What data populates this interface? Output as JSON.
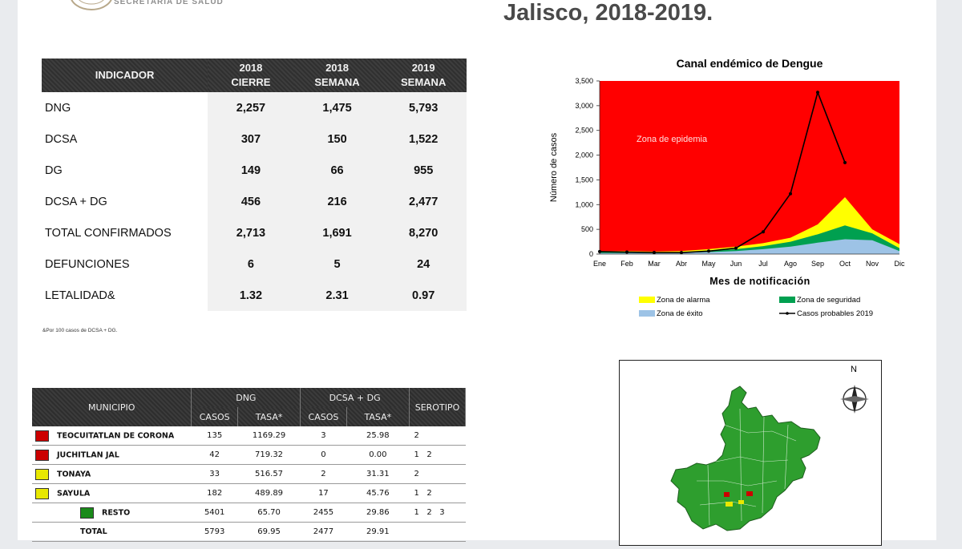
{
  "header": {
    "agency": "SECRETARÍA DE SALUD",
    "title": "Jalisco, 2018-2019."
  },
  "indicators": {
    "headers": {
      "indicator": "INDICADOR",
      "col1": [
        "2018",
        "CIERRE"
      ],
      "col2": [
        "2018",
        "SEMANA"
      ],
      "col3": [
        "2019",
        "SEMANA"
      ]
    },
    "rows": [
      {
        "label": "DNG",
        "v": [
          "2,257",
          "1,475",
          "5,793"
        ]
      },
      {
        "label": "DCSA",
        "v": [
          "307",
          "150",
          "1,522"
        ]
      },
      {
        "label": "DG",
        "v": [
          "149",
          "66",
          "955"
        ]
      },
      {
        "label": "DCSA + DG",
        "v": [
          "456",
          "216",
          "2,477"
        ]
      },
      {
        "label": "TOTAL CONFIRMADOS",
        "v": [
          "2,713",
          "1,691",
          "8,270"
        ]
      },
      {
        "label": "DEFUNCIONES",
        "v": [
          "6",
          "5",
          "24"
        ]
      },
      {
        "label": "LETALIDAD&",
        "v": [
          "1.32",
          "2.31",
          "0.97"
        ]
      }
    ],
    "footnote": "&Por 100 casos de DCSA + DG."
  },
  "municipios": {
    "headers": {
      "municipio": "MUNICIPIO",
      "dng": "DNG",
      "dcsa": "DCSA + DG",
      "casos": "CASOS",
      "tasa": "TASA*",
      "serotipo": "SEROTIPO"
    },
    "rows": [
      {
        "color": "#cc0000",
        "name": "TEOCUITATLAN DE CORONA",
        "casos1": "135",
        "tasa1": "1169.29",
        "casos2": "3",
        "tasa2": "25.98",
        "sero": "2"
      },
      {
        "color": "#cc0000",
        "name": "JUCHITLAN JAL",
        "casos1": "42",
        "tasa1": "719.32",
        "casos2": "0",
        "tasa2": "0.00",
        "sero": "1   2"
      },
      {
        "color": "#e8e800",
        "name": "TONAYA",
        "casos1": "33",
        "tasa1": "516.57",
        "casos2": "2",
        "tasa2": "31.31",
        "sero": "2"
      },
      {
        "color": "#e8e800",
        "name": "SAYULA",
        "casos1": "182",
        "tasa1": "489.89",
        "casos2": "17",
        "tasa2": "45.76",
        "sero": "1   2"
      },
      {
        "color": "#1a8a1a",
        "name": "RESTO",
        "casos1": "5401",
        "tasa1": "65.70",
        "casos2": "2455",
        "tasa2": "29.86",
        "sero": "1   2   3"
      },
      {
        "color": "",
        "name": "TOTAL",
        "casos1": "5793",
        "tasa1": "69.95",
        "casos2": "2477",
        "tasa2": "29.91",
        "sero": ""
      }
    ]
  },
  "chart_data": {
    "type": "area",
    "title": "Canal endémico de Dengue",
    "xlabel": "Mes de notificación",
    "ylabel": "Número de casos",
    "categories": [
      "Ene",
      "Feb",
      "Mar",
      "Abr",
      "May",
      "Jun",
      "Jul",
      "Ago",
      "Sep",
      "Oct",
      "Nov",
      "Dic"
    ],
    "yticks": [
      "0",
      "500",
      "1,000",
      "1,500",
      "2,000",
      "2,500",
      "3,000",
      "3,500"
    ],
    "ylim": [
      0,
      3500
    ],
    "zone_label": "Zona de epidemia",
    "series": [
      {
        "name": "Zona de éxito",
        "color": "#9dc3e6",
        "values": [
          20,
          20,
          20,
          25,
          40,
          60,
          100,
          150,
          230,
          300,
          280,
          60
        ]
      },
      {
        "name": "Zona de seguridad",
        "color": "#00a050",
        "values": [
          40,
          40,
          35,
          40,
          60,
          100,
          160,
          250,
          400,
          580,
          420,
          120
        ]
      },
      {
        "name": "Zona de alarma",
        "color": "#ffff00",
        "values": [
          60,
          60,
          50,
          60,
          100,
          150,
          220,
          330,
          600,
          1150,
          500,
          200
        ]
      },
      {
        "name": "Casos probables 2019",
        "color": "#000000",
        "values": [
          50,
          40,
          30,
          30,
          60,
          120,
          450,
          1220,
          3270,
          1850,
          null,
          null
        ]
      }
    ],
    "legend": [
      "Zona de alarma",
      "Zona de seguridad",
      "Zona de éxito",
      "Casos probables 2019"
    ],
    "legend_position": "bottom"
  },
  "map": {
    "north_label": "N"
  }
}
